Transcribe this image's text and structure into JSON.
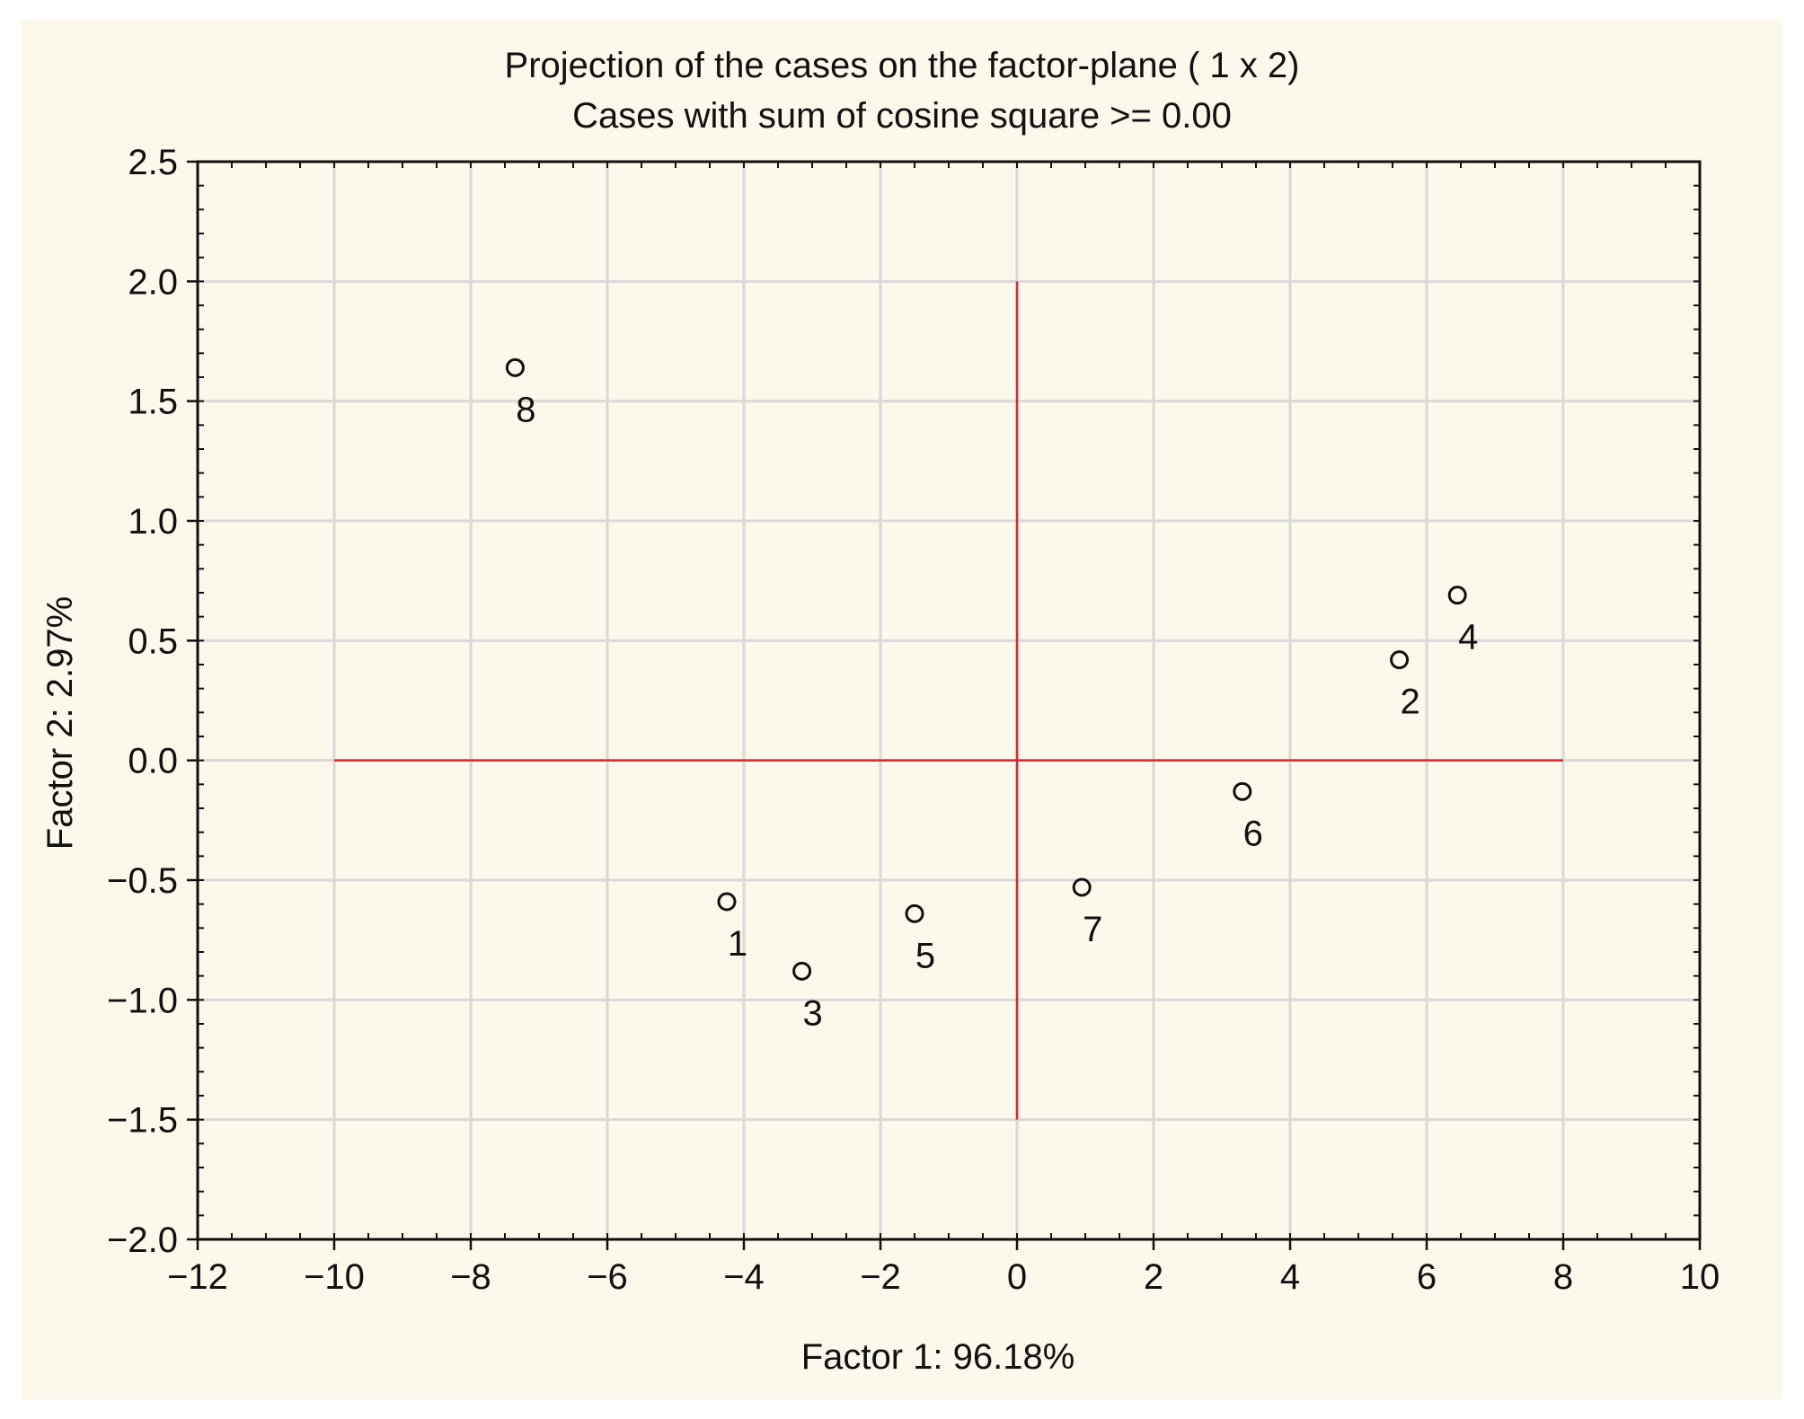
{
  "chart_data": {
    "type": "scatter",
    "title": "Projection of the cases on the factor-plane (  1 x   2)",
    "subtitle": "Cases with sum of cosine square >=  0.00",
    "xlabel": "Factor 1: 96.18%",
    "ylabel": "Factor 2:  2.97%",
    "xlim": [
      -12,
      10
    ],
    "ylim": [
      -2.0,
      2.5
    ],
    "grid": true,
    "x_ticks": [
      -12,
      -10,
      -8,
      -6,
      -4,
      -2,
      0,
      2,
      4,
      6,
      8,
      10
    ],
    "x_tick_labels": [
      "−12",
      "−10",
      "−8",
      "−6",
      "−4",
      "−2",
      "0",
      "2",
      "4",
      "6",
      "8",
      "10"
    ],
    "y_ticks": [
      -2.0,
      -1.5,
      -1.0,
      -0.5,
      0.0,
      0.5,
      1.0,
      1.5,
      2.0,
      2.5
    ],
    "y_tick_labels": [
      "−2.0",
      "−1.5",
      "−1.0",
      "−0.5",
      "0.0",
      "0.5",
      "1.0",
      "1.5",
      "2.0",
      "2.5"
    ],
    "reference_lines": {
      "color": "#e8232c",
      "horizontal": {
        "y": 0,
        "x_from": -10,
        "x_to": 8
      },
      "vertical": {
        "x": 0,
        "y_from": -1.5,
        "y_to": 2.0
      }
    },
    "points": [
      {
        "label": "1",
        "x": -4.25,
        "y": -0.59
      },
      {
        "label": "2",
        "x": 5.6,
        "y": 0.42
      },
      {
        "label": "3",
        "x": -3.15,
        "y": -0.88
      },
      {
        "label": "4",
        "x": 6.45,
        "y": 0.69
      },
      {
        "label": "5",
        "x": -1.5,
        "y": -0.64
      },
      {
        "label": "6",
        "x": 3.3,
        "y": -0.13
      },
      {
        "label": "7",
        "x": 0.95,
        "y": -0.53
      },
      {
        "label": "8",
        "x": -7.35,
        "y": 1.64
      }
    ],
    "colors": {
      "background": "#fcf8ec",
      "grid": "#d9d9d9",
      "axis": "#111111",
      "marker": "#111111"
    }
  }
}
